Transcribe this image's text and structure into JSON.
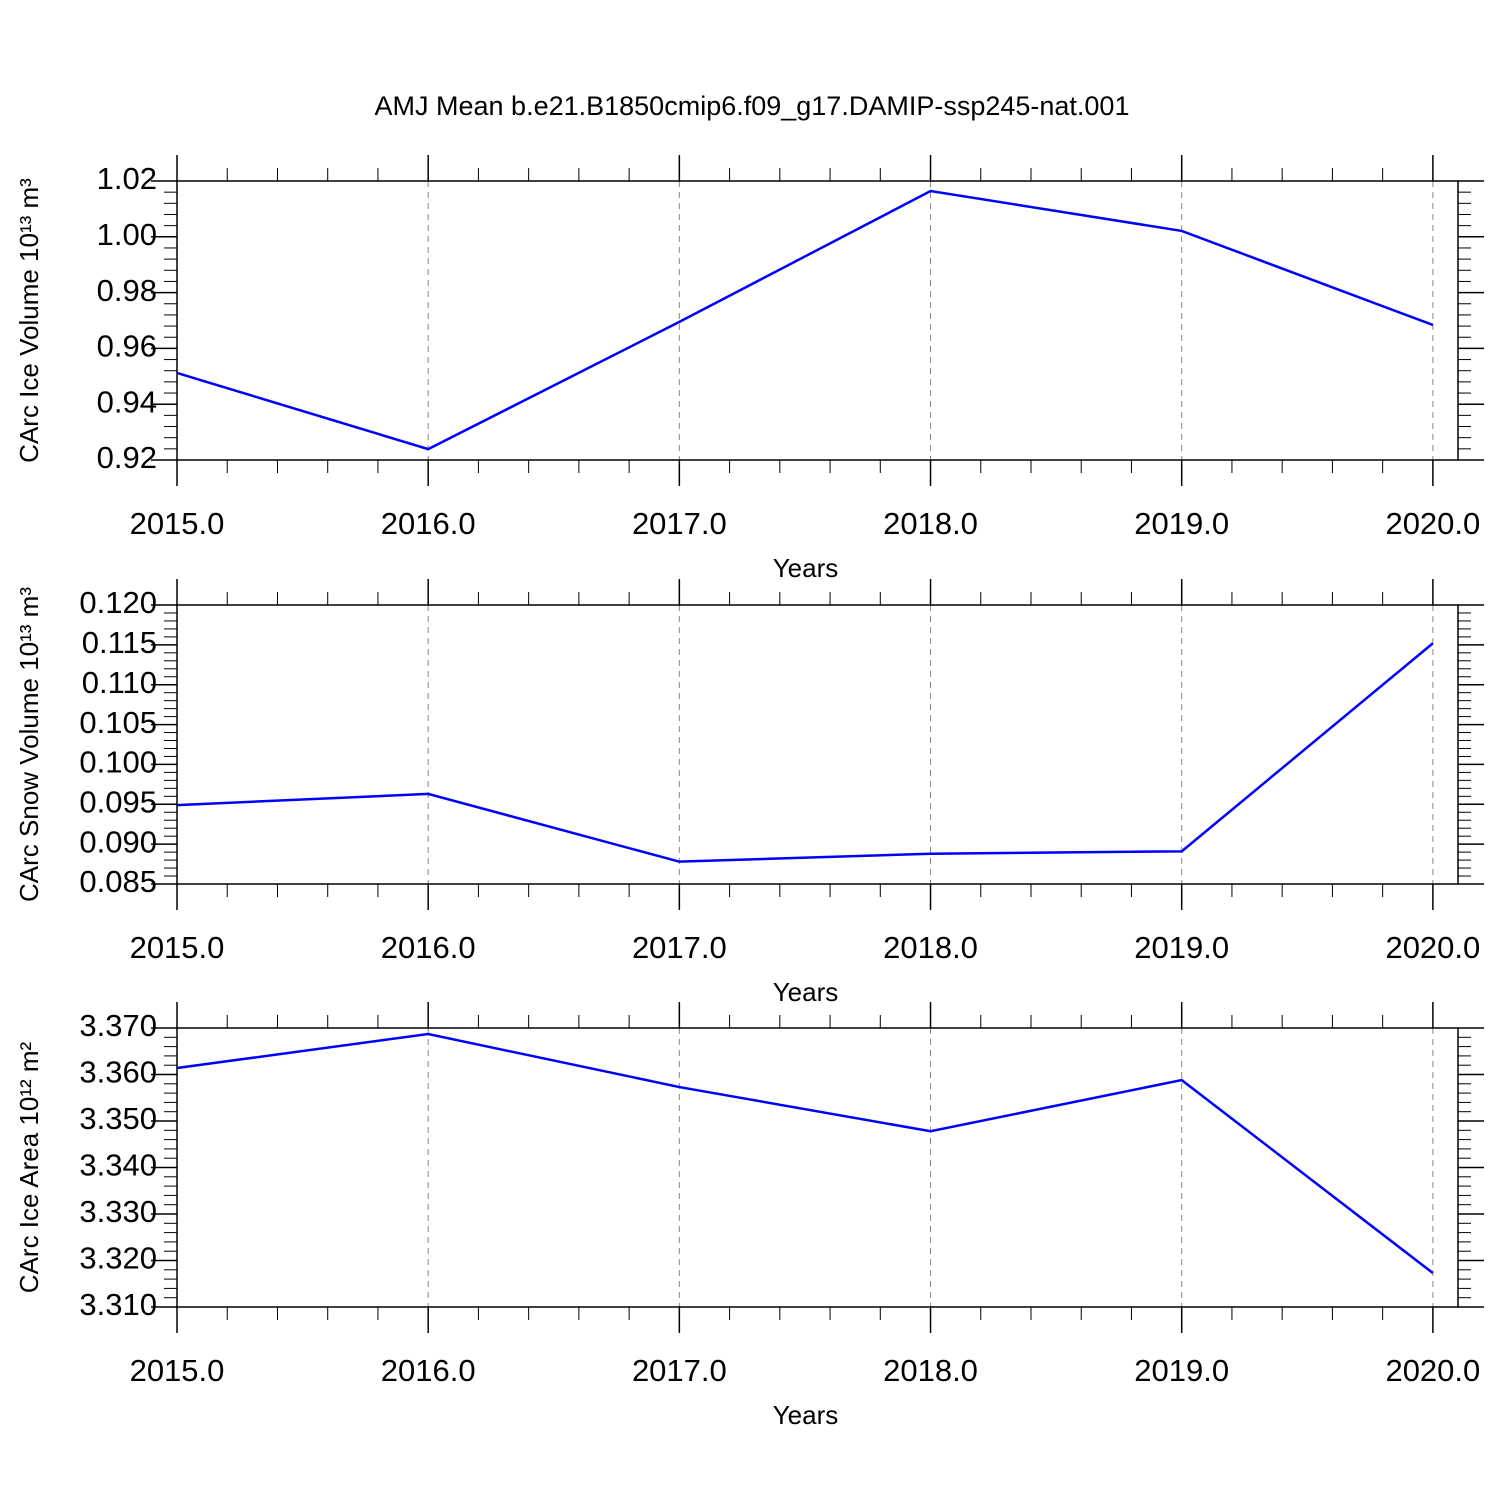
{
  "chart_data": [
    {
      "type": "line",
      "title": "AMJ Mean b.e21.B1850cmip6.f09_g17.DAMIP-ssp245-nat.001",
      "xlabel": "Years",
      "ylabel": "CArc Ice Volume 10¹³ m³",
      "x": [
        2015,
        2016,
        2017,
        2018,
        2019,
        2020
      ],
      "series": [
        {
          "color": "#0000ff",
          "values": [
            0.9512,
            0.9239,
            0.9695,
            1.0164,
            1.0021,
            0.9684
          ]
        }
      ],
      "xlim": [
        2015,
        2020.1
      ],
      "xticks": [
        {
          "value": 2015,
          "label": "2015.0"
        },
        {
          "value": 2016,
          "label": "2016.0"
        },
        {
          "value": 2017,
          "label": "2017.0"
        },
        {
          "value": 2018,
          "label": "2018.0"
        },
        {
          "value": 2019,
          "label": "2019.0"
        },
        {
          "value": 2020,
          "label": "2020.0"
        }
      ],
      "ylim": [
        0.92,
        1.02
      ],
      "yticks": [
        0.92,
        0.94,
        0.96,
        0.98,
        {
          "value": 1,
          "label": "1.00"
        },
        1.02
      ],
      "grid": "x"
    },
    {
      "type": "line",
      "xlabel": "Years",
      "ylabel": "CArc Snow Volume 10¹³ m³",
      "x": [
        2015,
        2016,
        2017,
        2018,
        2019,
        2020
      ],
      "series": [
        {
          "color": "#0000ff",
          "values": [
            0.0949,
            0.0963,
            0.0878,
            0.0888,
            0.0891,
            0.1152
          ]
        }
      ],
      "xlim": [
        2015,
        2020.1
      ],
      "xticks": [
        {
          "value": 2015,
          "label": "2015.0"
        },
        {
          "value": 2016,
          "label": "2016.0"
        },
        {
          "value": 2017,
          "label": "2017.0"
        },
        {
          "value": 2018,
          "label": "2018.0"
        },
        {
          "value": 2019,
          "label": "2019.0"
        },
        {
          "value": 2020,
          "label": "2020.0"
        }
      ],
      "ylim": [
        0.085,
        0.12
      ],
      "yticks": [
        0.085,
        {
          "value": 0.09,
          "label": "0.090"
        },
        0.095,
        {
          "value": 0.1,
          "label": "0.100"
        },
        0.105,
        {
          "value": 0.11,
          "label": "0.110"
        },
        0.115,
        {
          "value": 0.12,
          "label": "0.120"
        }
      ],
      "grid": "x"
    },
    {
      "type": "line",
      "xlabel": "Years",
      "ylabel": "CArc Ice Area 10¹² m²",
      "x": [
        2015,
        2016,
        2017,
        2018,
        2019,
        2020
      ],
      "series": [
        {
          "color": "#0000ff",
          "values": [
            3.3614,
            3.3687,
            3.3573,
            3.3478,
            3.3588,
            3.3173
          ]
        }
      ],
      "xlim": [
        2015,
        2020.1
      ],
      "xticks": [
        {
          "value": 2015,
          "label": "2015.0"
        },
        {
          "value": 2016,
          "label": "2016.0"
        },
        {
          "value": 2017,
          "label": "2017.0"
        },
        {
          "value": 2018,
          "label": "2018.0"
        },
        {
          "value": 2019,
          "label": "2019.0"
        },
        {
          "value": 2020,
          "label": "2020.0"
        }
      ],
      "ylim": [
        3.31,
        3.37
      ],
      "yticks": [
        {
          "value": 3.31,
          "label": "3.310"
        },
        {
          "value": 3.32,
          "label": "3.320"
        },
        {
          "value": 3.33,
          "label": "3.330"
        },
        {
          "value": 3.34,
          "label": "3.340"
        },
        {
          "value": 3.35,
          "label": "3.350"
        },
        {
          "value": 3.36,
          "label": "3.360"
        },
        {
          "value": 3.37,
          "label": "3.370"
        }
      ],
      "grid": "x"
    }
  ]
}
